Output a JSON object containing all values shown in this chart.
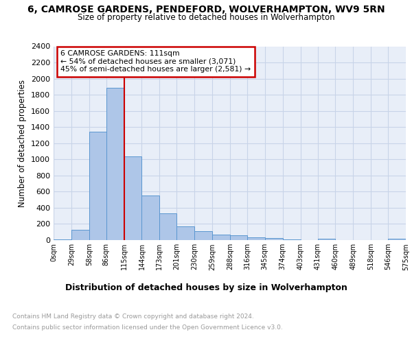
{
  "title": "6, CAMROSE GARDENS, PENDEFORD, WOLVERHAMPTON, WV9 5RN",
  "subtitle": "Size of property relative to detached houses in Wolverhampton",
  "xlabel": "Distribution of detached houses by size in Wolverhampton",
  "ylabel": "Number of detached properties",
  "bin_edges": [
    0,
    29,
    58,
    86,
    115,
    144,
    173,
    201,
    230,
    259,
    288,
    316,
    345,
    374,
    403,
    431,
    460,
    489,
    518,
    546,
    575
  ],
  "bar_heights": [
    10,
    130,
    1340,
    1890,
    1040,
    550,
    335,
    170,
    110,
    65,
    60,
    35,
    25,
    10,
    0,
    20,
    0,
    0,
    0,
    15
  ],
  "bar_color": "#aec6e8",
  "bar_edge_color": "#5a96d0",
  "vline_x": 115,
  "vline_color": "#cc0000",
  "annotation_text": "6 CAMROSE GARDENS: 111sqm\n← 54% of detached houses are smaller (3,071)\n45% of semi-detached houses are larger (2,581) →",
  "annotation_box_color": "#ffffff",
  "annotation_box_edge": "#cc0000",
  "tick_labels": [
    "0sqm",
    "29sqm",
    "58sqm",
    "86sqm",
    "115sqm",
    "144sqm",
    "173sqm",
    "201sqm",
    "230sqm",
    "259sqm",
    "288sqm",
    "316sqm",
    "345sqm",
    "374sqm",
    "403sqm",
    "431sqm",
    "460sqm",
    "489sqm",
    "518sqm",
    "546sqm",
    "575sqm"
  ],
  "ylim": [
    0,
    2400
  ],
  "yticks": [
    0,
    200,
    400,
    600,
    800,
    1000,
    1200,
    1400,
    1600,
    1800,
    2000,
    2200,
    2400
  ],
  "grid_color": "#c8d4e8",
  "background_color": "#e8eef8",
  "footer_line1": "Contains HM Land Registry data © Crown copyright and database right 2024.",
  "footer_line2": "Contains public sector information licensed under the Open Government Licence v3.0.",
  "footer_color": "#999999"
}
